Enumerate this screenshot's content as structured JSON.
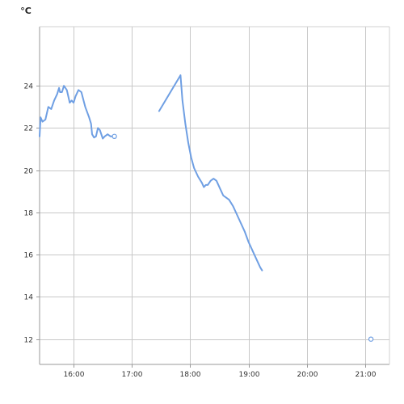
{
  "chart_data": {
    "type": "line",
    "title": "",
    "xlabel": "",
    "ylabel": "°C",
    "x_axis": {
      "min": "15:25",
      "max": "21:25",
      "ticks": [
        "16:00",
        "17:00",
        "18:00",
        "19:00",
        "20:00",
        "21:00"
      ]
    },
    "y_axis": {
      "min": 10.8,
      "max": 26.8,
      "ticks": [
        12,
        14,
        16,
        18,
        20,
        22,
        24
      ]
    },
    "grid": true,
    "legend": "none",
    "series": [
      {
        "color": "#6f9fe3",
        "segments": [
          {
            "end_marker": true,
            "points": [
              [
                "15:25",
                21.6
              ],
              [
                "15:26",
                22.5
              ],
              [
                "15:28",
                22.3
              ],
              [
                "15:31",
                22.4
              ],
              [
                "15:34",
                23.0
              ],
              [
                "15:37",
                22.9
              ],
              [
                "15:40",
                23.3
              ],
              [
                "15:43",
                23.6
              ],
              [
                "15:45",
                23.9
              ],
              [
                "15:46",
                23.7
              ],
              [
                "15:48",
                23.7
              ],
              [
                "15:50",
                24.0
              ],
              [
                "15:53",
                23.8
              ],
              [
                "15:55",
                23.4
              ],
              [
                "15:56",
                23.2
              ],
              [
                "15:58",
                23.3
              ],
              [
                "16:00",
                23.2
              ],
              [
                "16:02",
                23.5
              ],
              [
                "16:05",
                23.8
              ],
              [
                "16:08",
                23.7
              ],
              [
                "16:12",
                23.0
              ],
              [
                "16:16",
                22.5
              ],
              [
                "16:18",
                22.2
              ],
              [
                "16:19",
                21.7
              ],
              [
                "16:21",
                21.55
              ],
              [
                "16:23",
                21.6
              ],
              [
                "16:25",
                22.0
              ],
              [
                "16:27",
                21.9
              ],
              [
                "16:30",
                21.5
              ],
              [
                "16:32",
                21.6
              ],
              [
                "16:35",
                21.7
              ],
              [
                "16:38",
                21.6
              ],
              [
                "16:42",
                21.6
              ]
            ]
          },
          {
            "end_marker": false,
            "points": [
              [
                "17:28",
                22.8
              ],
              [
                "17:50",
                24.5
              ],
              [
                "17:52",
                23.3
              ],
              [
                "17:55",
                22.2
              ],
              [
                "17:58",
                21.3
              ],
              [
                "18:01",
                20.6
              ],
              [
                "18:04",
                20.1
              ],
              [
                "18:08",
                19.7
              ],
              [
                "18:12",
                19.4
              ],
              [
                "18:14",
                19.2
              ],
              [
                "18:16",
                19.3
              ],
              [
                "18:18",
                19.3
              ],
              [
                "18:21",
                19.5
              ],
              [
                "18:24",
                19.6
              ],
              [
                "18:27",
                19.5
              ],
              [
                "18:31",
                19.1
              ],
              [
                "18:34",
                18.8
              ],
              [
                "18:37",
                18.7
              ],
              [
                "18:40",
                18.6
              ],
              [
                "18:44",
                18.3
              ],
              [
                "18:48",
                17.9
              ],
              [
                "18:52",
                17.5
              ],
              [
                "18:56",
                17.1
              ],
              [
                "19:00",
                16.6
              ],
              [
                "19:03",
                16.3
              ],
              [
                "19:07",
                15.9
              ],
              [
                "19:12",
                15.4
              ],
              [
                "19:14",
                15.25
              ]
            ]
          },
          {
            "end_marker": true,
            "points": [
              [
                "21:06",
                12.0
              ]
            ]
          }
        ]
      }
    ]
  }
}
